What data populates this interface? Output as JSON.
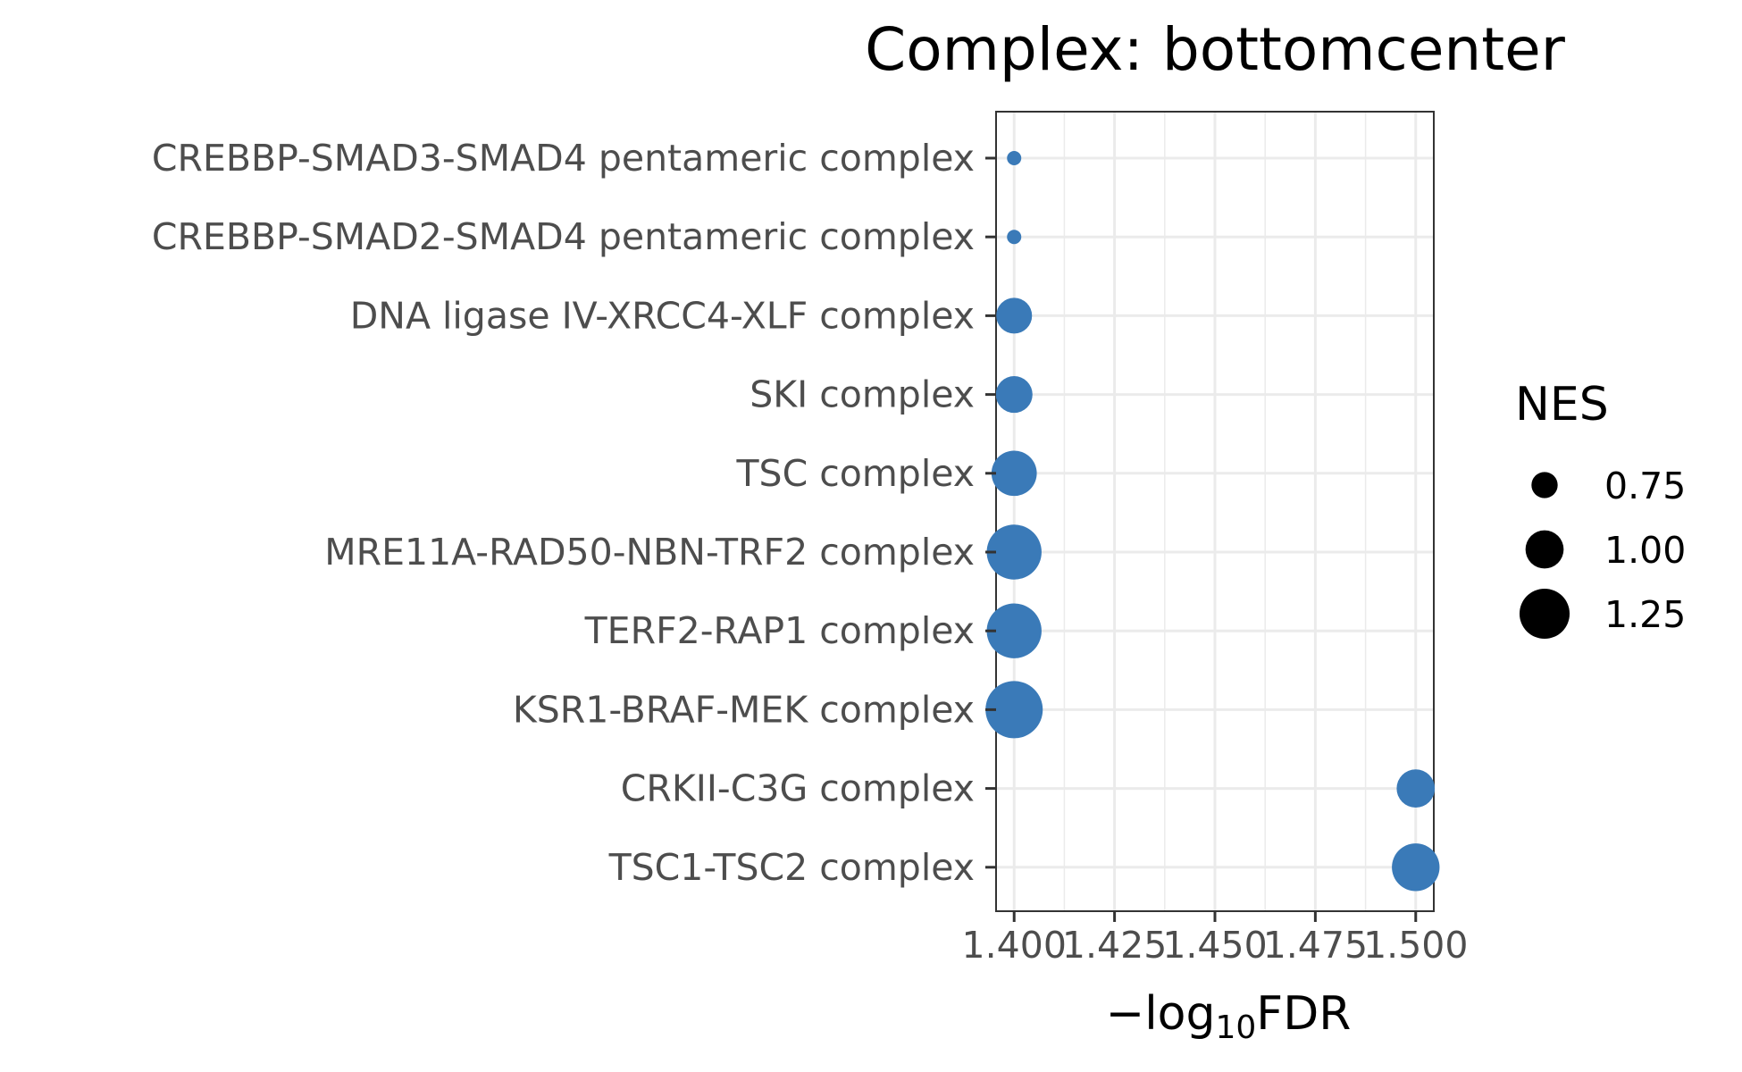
{
  "chart_data": {
    "type": "scatter",
    "title": "Complex: bottomcenter",
    "xlabel": "−log10FDR",
    "xlabel_parts": {
      "prefix": "−",
      "func": "log",
      "sub": "10",
      "suffix": "FDR"
    },
    "ylabel": "",
    "xlim": [
      1.3955,
      1.5045
    ],
    "xticks": [
      1.4,
      1.425,
      1.45,
      1.475,
      1.5
    ],
    "xtick_labels": [
      "1.400",
      "1.425",
      "1.450",
      "1.475",
      "1.500"
    ],
    "grid": true,
    "point_color": "#3a7ab8",
    "categories": [
      "CREBBP-SMAD3-SMAD4 pentameric complex",
      "CREBBP-SMAD2-SMAD4 pentameric complex",
      "DNA ligase IV-XRCC4-XLF complex",
      "SKI complex",
      "TSC complex",
      "MRE11A-RAD50-NBN-TRF2 complex",
      "TERF2-RAP1 complex",
      "KSR1-BRAF-MEK complex",
      "CRKII-C3G complex",
      "TSC1-TSC2 complex"
    ],
    "points": [
      {
        "category": "CREBBP-SMAD3-SMAD4 pentameric complex",
        "x": 1.4,
        "nes": 0.5
      },
      {
        "category": "CREBBP-SMAD2-SMAD4 pentameric complex",
        "x": 1.4,
        "nes": 0.5
      },
      {
        "category": "DNA ligase IV-XRCC4-XLF complex",
        "x": 1.4,
        "nes": 0.95
      },
      {
        "category": "SKI complex",
        "x": 1.4,
        "nes": 0.97
      },
      {
        "category": "TSC complex",
        "x": 1.4,
        "nes": 1.15
      },
      {
        "category": "MRE11A-RAD50-NBN-TRF2 complex",
        "x": 1.4,
        "nes": 1.35
      },
      {
        "category": "TERF2-RAP1 complex",
        "x": 1.4,
        "nes": 1.35
      },
      {
        "category": "KSR1-BRAF-MEK complex",
        "x": 1.4,
        "nes": 1.4
      },
      {
        "category": "CRKII-C3G complex",
        "x": 1.5,
        "nes": 1.0
      },
      {
        "category": "TSC1-TSC2 complex",
        "x": 1.5,
        "nes": 1.2
      }
    ],
    "legend": {
      "title": "NES",
      "position": "right",
      "entries": [
        {
          "label": "0.75",
          "value": 0.75
        },
        {
          "label": "1.00",
          "value": 1.0
        },
        {
          "label": "1.25",
          "value": 1.25
        }
      ]
    }
  }
}
